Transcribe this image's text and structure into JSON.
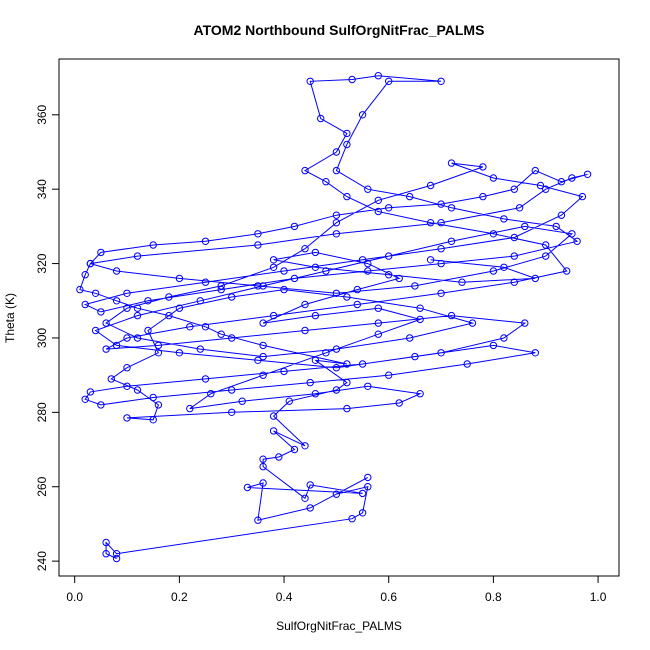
{
  "chart_data": {
    "type": "line",
    "title": "ATOM2 Northbound SulfOrgNitFrac_PALMS",
    "xlabel": "SulfOrgNitFrac_PALMS",
    "ylabel": "Theta (K)",
    "xlim": [
      -0.03,
      1.04
    ],
    "ylim": [
      236,
      375
    ],
    "xticks": [
      "0.0",
      "0.2",
      "0.4",
      "0.6",
      "0.8",
      "1.0"
    ],
    "yticks": [
      "240",
      "260",
      "280",
      "300",
      "320",
      "340",
      "360"
    ],
    "color": "#0000ff",
    "marker": "open-circle",
    "series": [
      {
        "points": [
          [
            0.08,
            240.7
          ],
          [
            0.06,
            242.0
          ],
          [
            0.06,
            245.0
          ],
          [
            0.08,
            242.0
          ],
          [
            0.53,
            251.4
          ],
          [
            0.55,
            253.0
          ],
          [
            0.56,
            260.0
          ],
          [
            0.5,
            258.0
          ],
          [
            0.56,
            262.5
          ],
          [
            0.45,
            254.3
          ],
          [
            0.35,
            251.0
          ],
          [
            0.36,
            261.0
          ],
          [
            0.33,
            259.8
          ],
          [
            0.55,
            258.2
          ],
          [
            0.45,
            260.5
          ],
          [
            0.44,
            256.9
          ],
          [
            0.36,
            265.4
          ],
          [
            0.36,
            267.4
          ],
          [
            0.39,
            268.0
          ],
          [
            0.42,
            270.0
          ],
          [
            0.38,
            275.0
          ],
          [
            0.44,
            271.0
          ],
          [
            0.38,
            279.0
          ],
          [
            0.41,
            283.0
          ],
          [
            0.5,
            286.0
          ],
          [
            0.52,
            288.0
          ],
          [
            0.46,
            294.0
          ],
          [
            0.52,
            293.0
          ],
          [
            0.36,
            298.0
          ],
          [
            0.28,
            301.0
          ],
          [
            0.25,
            303.0
          ],
          [
            0.18,
            306.0
          ],
          [
            0.12,
            308.0
          ],
          [
            0.08,
            310.0
          ],
          [
            0.04,
            312.0
          ],
          [
            0.01,
            313.0
          ],
          [
            0.02,
            317.0
          ],
          [
            0.03,
            320.0
          ],
          [
            0.12,
            322.0
          ],
          [
            0.35,
            325.0
          ],
          [
            0.5,
            328.0
          ],
          [
            0.7,
            331.0
          ],
          [
            0.85,
            335.0
          ],
          [
            0.9,
            340.0
          ],
          [
            0.95,
            343.0
          ],
          [
            0.98,
            344.0
          ],
          [
            0.93,
            342.0
          ],
          [
            0.88,
            345.0
          ],
          [
            0.84,
            340.0
          ],
          [
            0.78,
            338.0
          ],
          [
            0.7,
            336.0
          ],
          [
            0.6,
            335.0
          ],
          [
            0.5,
            333.0
          ],
          [
            0.42,
            330.0
          ],
          [
            0.35,
            328.0
          ],
          [
            0.25,
            326.0
          ],
          [
            0.15,
            325.0
          ],
          [
            0.05,
            323.0
          ],
          [
            0.03,
            320.0
          ],
          [
            0.08,
            318.0
          ],
          [
            0.2,
            316.0
          ],
          [
            0.35,
            314.0
          ],
          [
            0.5,
            312.0
          ],
          [
            0.65,
            314.0
          ],
          [
            0.8,
            318.0
          ],
          [
            0.9,
            322.0
          ],
          [
            0.95,
            328.0
          ],
          [
            0.86,
            330.0
          ],
          [
            0.72,
            326.0
          ],
          [
            0.6,
            322.0
          ],
          [
            0.48,
            318.0
          ],
          [
            0.36,
            314.0
          ],
          [
            0.24,
            310.0
          ],
          [
            0.12,
            306.0
          ],
          [
            0.04,
            302.0
          ],
          [
            0.08,
            298.0
          ],
          [
            0.2,
            296.0
          ],
          [
            0.35,
            294.0
          ],
          [
            0.5,
            292.0
          ],
          [
            0.65,
            295.0
          ],
          [
            0.8,
            298.0
          ],
          [
            0.88,
            296.0
          ],
          [
            0.75,
            293.0
          ],
          [
            0.6,
            290.0
          ],
          [
            0.45,
            288.0
          ],
          [
            0.3,
            286.0
          ],
          [
            0.15,
            284.0
          ],
          [
            0.05,
            282.0
          ],
          [
            0.02,
            283.5
          ],
          [
            0.03,
            285.5
          ],
          [
            0.1,
            287.0
          ],
          [
            0.25,
            289.0
          ],
          [
            0.4,
            291.0
          ],
          [
            0.55,
            293.0
          ],
          [
            0.7,
            296.0
          ],
          [
            0.82,
            300.0
          ],
          [
            0.86,
            304.0
          ],
          [
            0.72,
            306.0
          ],
          [
            0.58,
            304.0
          ],
          [
            0.44,
            302.0
          ],
          [
            0.3,
            300.0
          ],
          [
            0.16,
            298.0
          ],
          [
            0.06,
            297.0
          ],
          [
            0.1,
            300.0
          ],
          [
            0.22,
            303.0
          ],
          [
            0.38,
            306.0
          ],
          [
            0.54,
            309.0
          ],
          [
            0.7,
            312.0
          ],
          [
            0.84,
            315.0
          ],
          [
            0.94,
            318.0
          ],
          [
            0.9,
            325.0
          ],
          [
            0.8,
            328.0
          ],
          [
            0.68,
            331.0
          ],
          [
            0.58,
            334.0
          ],
          [
            0.52,
            338.0
          ],
          [
            0.48,
            342.0
          ],
          [
            0.44,
            345.0
          ],
          [
            0.5,
            350.0
          ],
          [
            0.52,
            355.0
          ],
          [
            0.47,
            359.0
          ],
          [
            0.45,
            369.0
          ],
          [
            0.53,
            369.5
          ],
          [
            0.58,
            370.5
          ],
          [
            0.7,
            369.0
          ],
          [
            0.6,
            369.0
          ],
          [
            0.55,
            360.0
          ],
          [
            0.52,
            352.0
          ],
          [
            0.5,
            345.0
          ],
          [
            0.56,
            340.0
          ],
          [
            0.64,
            338.0
          ],
          [
            0.72,
            335.0
          ],
          [
            0.82,
            332.0
          ],
          [
            0.92,
            330.0
          ],
          [
            0.96,
            326.0
          ],
          [
            0.84,
            322.0
          ],
          [
            0.7,
            320.0
          ],
          [
            0.56,
            318.0
          ],
          [
            0.42,
            316.0
          ],
          [
            0.28,
            313.0
          ],
          [
            0.14,
            310.0
          ],
          [
            0.05,
            307.0
          ],
          [
            0.02,
            309.0
          ],
          [
            0.1,
            312.0
          ],
          [
            0.25,
            315.0
          ],
          [
            0.4,
            318.0
          ],
          [
            0.55,
            321.0
          ],
          [
            0.7,
            324.0
          ],
          [
            0.84,
            327.0
          ],
          [
            0.93,
            333.0
          ],
          [
            0.97,
            338.0
          ],
          [
            0.89,
            341.0
          ],
          [
            0.8,
            343.0
          ],
          [
            0.72,
            347.0
          ],
          [
            0.78,
            346.0
          ],
          [
            0.68,
            341.0
          ],
          [
            0.58,
            337.0
          ],
          [
            0.5,
            331.0
          ],
          [
            0.44,
            324.0
          ],
          [
            0.38,
            319.0
          ],
          [
            0.28,
            314.0
          ],
          [
            0.18,
            311.0
          ],
          [
            0.1,
            308.0
          ],
          [
            0.06,
            304.0
          ],
          [
            0.12,
            300.0
          ],
          [
            0.24,
            297.0
          ],
          [
            0.36,
            295.0
          ],
          [
            0.5,
            297.0
          ],
          [
            0.64,
            300.0
          ],
          [
            0.76,
            304.0
          ],
          [
            0.66,
            308.0
          ],
          [
            0.52,
            311.0
          ],
          [
            0.4,
            313.0
          ],
          [
            0.3,
            311.0
          ],
          [
            0.2,
            308.0
          ],
          [
            0.14,
            302.0
          ],
          [
            0.16,
            296.0
          ],
          [
            0.1,
            292.0
          ],
          [
            0.07,
            289.0
          ],
          [
            0.12,
            286.0
          ],
          [
            0.16,
            282.0
          ],
          [
            0.15,
            278.0
          ],
          [
            0.1,
            278.5
          ],
          [
            0.3,
            280.0
          ],
          [
            0.52,
            281.0
          ],
          [
            0.62,
            282.5
          ],
          [
            0.66,
            285.0
          ],
          [
            0.56,
            287.0
          ],
          [
            0.46,
            285.0
          ],
          [
            0.32,
            283.0
          ],
          [
            0.22,
            281.0
          ],
          [
            0.26,
            285.0
          ],
          [
            0.36,
            290.0
          ],
          [
            0.48,
            296.0
          ],
          [
            0.58,
            301.0
          ],
          [
            0.66,
            305.0
          ],
          [
            0.58,
            308.0
          ],
          [
            0.46,
            306.0
          ],
          [
            0.36,
            304.0
          ],
          [
            0.44,
            309.0
          ],
          [
            0.54,
            313.0
          ],
          [
            0.62,
            316.0
          ],
          [
            0.56,
            320.0
          ],
          [
            0.46,
            323.0
          ],
          [
            0.38,
            321.0
          ],
          [
            0.46,
            319.0
          ],
          [
            0.6,
            317.0
          ],
          [
            0.74,
            315.0
          ],
          [
            0.88,
            316.0
          ],
          [
            0.82,
            319.0
          ],
          [
            0.68,
            321.0
          ]
        ]
      }
    ]
  }
}
